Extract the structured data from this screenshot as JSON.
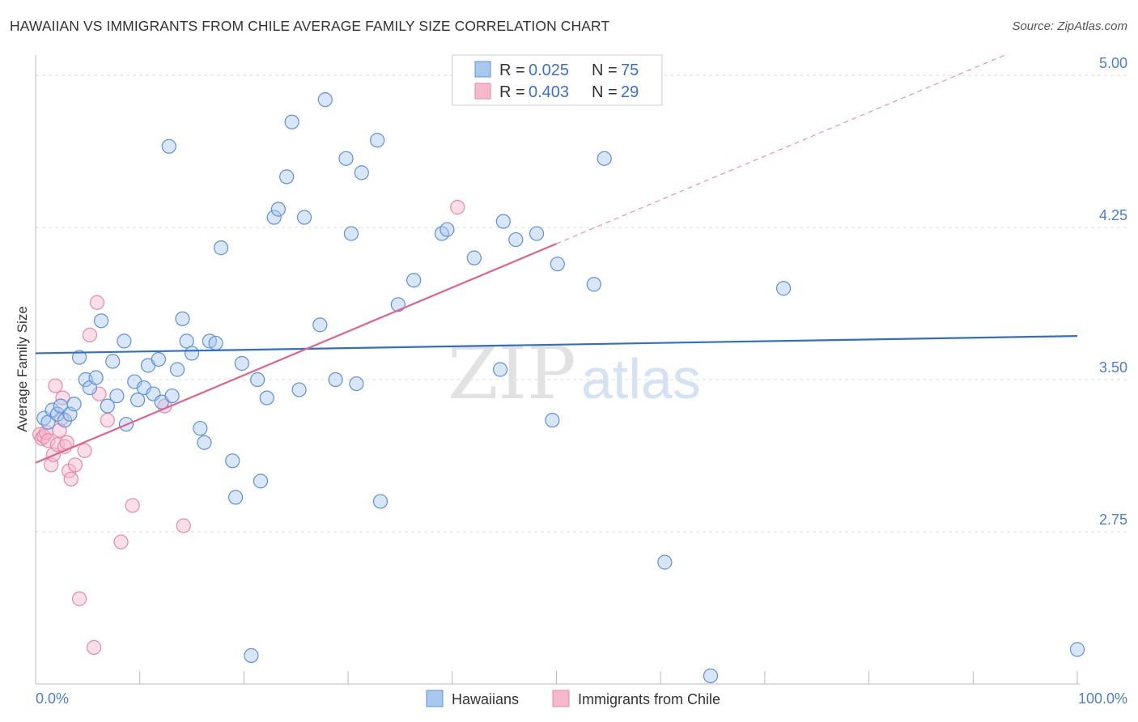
{
  "header": {
    "title": "HAWAIIAN VS IMMIGRANTS FROM CHILE AVERAGE FAMILY SIZE CORRELATION CHART",
    "source": "Source: ZipAtlas.com"
  },
  "watermark": {
    "part1": "ZIP",
    "part2": "atlas"
  },
  "legend": {
    "r_label": "R =",
    "n_label": "N =",
    "rows": [
      {
        "r": "0.025",
        "n": "75"
      },
      {
        "r": "0.403",
        "n": "29"
      }
    ]
  },
  "colors": {
    "blue_fill": "#a9c8ef",
    "blue_stroke": "#5b93d8",
    "blue_line": "#2f6fcc",
    "pink_fill": "#f6b9cc",
    "pink_stroke": "#e889a8",
    "pink_line": "#e0628f",
    "tick_label": "#4a7fd1",
    "grid": "#dddddd"
  },
  "chart_data": {
    "type": "scatter",
    "title": "HAWAIIAN VS IMMIGRANTS FROM CHILE AVERAGE FAMILY SIZE CORRELATION CHART",
    "xlabel": "",
    "ylabel": "Average Family Size",
    "xlim": [
      0,
      100
    ],
    "ylim": [
      2.0,
      5.1
    ],
    "x_tick_labels": [
      "0.0%",
      "100.0%"
    ],
    "y_ticks": [
      2.75,
      3.5,
      4.25,
      5.0
    ],
    "y_tick_labels": [
      "2.75",
      "3.50",
      "4.25",
      "5.00"
    ],
    "grid": true,
    "legend_position": "top-center",
    "series": [
      {
        "name": "Hawaiians",
        "color": "#a9c8ef",
        "trend": {
          "x": [
            0,
            100
          ],
          "y": [
            3.63,
            3.715
          ]
        },
        "points": [
          [
            0.8,
            3.31
          ],
          [
            1.2,
            3.29
          ],
          [
            1.6,
            3.35
          ],
          [
            2.1,
            3.33
          ],
          [
            2.4,
            3.37
          ],
          [
            2.8,
            3.3
          ],
          [
            3.3,
            3.33
          ],
          [
            3.7,
            3.38
          ],
          [
            4.2,
            3.61
          ],
          [
            4.8,
            3.5
          ],
          [
            5.2,
            3.46
          ],
          [
            5.8,
            3.51
          ],
          [
            6.3,
            3.79
          ],
          [
            6.9,
            3.37
          ],
          [
            7.4,
            3.59
          ],
          [
            7.8,
            3.42
          ],
          [
            8.5,
            3.69
          ],
          [
            8.7,
            3.28
          ],
          [
            9.5,
            3.49
          ],
          [
            9.8,
            3.4
          ],
          [
            10.4,
            3.46
          ],
          [
            10.8,
            3.57
          ],
          [
            11.3,
            3.43
          ],
          [
            11.8,
            3.6
          ],
          [
            12.1,
            3.39
          ],
          [
            12.8,
            4.65
          ],
          [
            13.1,
            3.42
          ],
          [
            13.6,
            3.55
          ],
          [
            14.1,
            3.8
          ],
          [
            14.5,
            3.69
          ],
          [
            15.0,
            3.63
          ],
          [
            15.8,
            3.26
          ],
          [
            16.2,
            3.19
          ],
          [
            16.7,
            3.69
          ],
          [
            17.3,
            3.68
          ],
          [
            17.8,
            4.15
          ],
          [
            18.9,
            3.1
          ],
          [
            19.2,
            2.92
          ],
          [
            19.8,
            3.58
          ],
          [
            20.7,
            2.14
          ],
          [
            21.3,
            3.5
          ],
          [
            21.6,
            3.0
          ],
          [
            22.2,
            3.41
          ],
          [
            22.9,
            4.3
          ],
          [
            23.3,
            4.34
          ],
          [
            24.1,
            4.5
          ],
          [
            24.6,
            4.77
          ],
          [
            25.3,
            3.45
          ],
          [
            25.8,
            4.3
          ],
          [
            27.3,
            3.77
          ],
          [
            27.8,
            4.88
          ],
          [
            28.8,
            3.5
          ],
          [
            29.8,
            4.59
          ],
          [
            30.3,
            4.22
          ],
          [
            30.8,
            3.48
          ],
          [
            31.3,
            4.52
          ],
          [
            32.8,
            4.68
          ],
          [
            33.1,
            2.9
          ],
          [
            34.8,
            3.87
          ],
          [
            36.3,
            3.99
          ],
          [
            39.0,
            4.22
          ],
          [
            39.5,
            4.24
          ],
          [
            42.1,
            4.1
          ],
          [
            44.6,
            3.55
          ],
          [
            44.9,
            4.28
          ],
          [
            46.1,
            4.19
          ],
          [
            48.1,
            4.22
          ],
          [
            49.6,
            3.3
          ],
          [
            50.1,
            4.07
          ],
          [
            53.6,
            3.97
          ],
          [
            54.6,
            4.59
          ],
          [
            60.4,
            2.6
          ],
          [
            64.8,
            2.04
          ],
          [
            71.8,
            3.95
          ],
          [
            100.0,
            2.17
          ]
        ]
      },
      {
        "name": "Immigrants from Chile",
        "color": "#f6b9cc",
        "trend": {
          "x": [
            0,
            50
          ],
          "y": [
            3.09,
            4.17
          ],
          "dashed_extension": {
            "x": [
              50,
              100
            ],
            "y": [
              4.17,
              5.25
            ]
          }
        },
        "points": [
          [
            0.4,
            3.23
          ],
          [
            0.6,
            3.21
          ],
          [
            0.8,
            3.22
          ],
          [
            1.0,
            3.24
          ],
          [
            1.2,
            3.2
          ],
          [
            1.5,
            3.08
          ],
          [
            1.7,
            3.13
          ],
          [
            1.9,
            3.47
          ],
          [
            2.1,
            3.18
          ],
          [
            2.3,
            3.25
          ],
          [
            2.5,
            3.31
          ],
          [
            2.6,
            3.41
          ],
          [
            2.8,
            3.17
          ],
          [
            3.0,
            3.19
          ],
          [
            3.2,
            3.05
          ],
          [
            3.4,
            3.01
          ],
          [
            3.8,
            3.08
          ],
          [
            4.2,
            2.42
          ],
          [
            4.7,
            3.15
          ],
          [
            5.2,
            3.72
          ],
          [
            5.6,
            2.18
          ],
          [
            5.9,
            3.88
          ],
          [
            6.1,
            3.43
          ],
          [
            6.9,
            3.3
          ],
          [
            8.2,
            2.7
          ],
          [
            9.3,
            2.88
          ],
          [
            12.4,
            3.37
          ],
          [
            14.2,
            2.78
          ],
          [
            40.5,
            4.35
          ]
        ]
      }
    ]
  },
  "bottom_legend": [
    {
      "label": "Hawaiians"
    },
    {
      "label": "Immigrants from Chile"
    }
  ]
}
